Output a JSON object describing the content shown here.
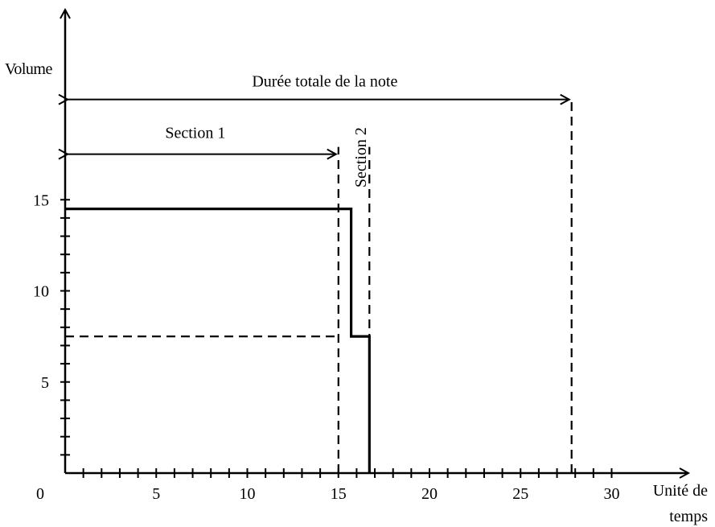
{
  "chart_data": {
    "type": "line",
    "title": "",
    "ylabel": "Volume",
    "xlabel_lines": [
      "Unité de",
      "temps"
    ],
    "x_ticks": [
      0,
      5,
      10,
      15,
      20,
      25,
      30
    ],
    "y_ticks": [
      5,
      10,
      15
    ],
    "xlim": [
      0,
      34
    ],
    "ylim": [
      0,
      20
    ],
    "x_minor_step": 1,
    "y_minor_step": 1,
    "series": [
      {
        "style": "solid",
        "points": [
          [
            0,
            14.5
          ],
          [
            15.7,
            14.5
          ],
          [
            15.7,
            7.5
          ],
          [
            16.7,
            7.5
          ],
          [
            16.7,
            0
          ]
        ]
      }
    ],
    "reference_lines": [
      {
        "style": "dashed",
        "points": [
          [
            0,
            7.5
          ],
          [
            15,
            7.5
          ]
        ]
      },
      {
        "style": "dashed",
        "points": [
          [
            15,
            0
          ],
          [
            15,
            17.9
          ]
        ]
      },
      {
        "style": "dashed",
        "points": [
          [
            16.7,
            0
          ],
          [
            16.7,
            17.9
          ]
        ]
      },
      {
        "style": "dashed",
        "points": [
          [
            27.8,
            0
          ],
          [
            27.8,
            20.5
          ]
        ]
      }
    ],
    "annotations": [
      {
        "label": "Durée totale de la note",
        "x_start": 0,
        "x_end": 27.8,
        "y": 20.5,
        "orientation": "horizontal"
      },
      {
        "label": "Section 1",
        "x_start": 0,
        "x_end": 15,
        "y": 17.5,
        "orientation": "horizontal"
      },
      {
        "label": "Section 2",
        "x": 16.2,
        "y": 17.5,
        "orientation": "vertical"
      }
    ]
  }
}
